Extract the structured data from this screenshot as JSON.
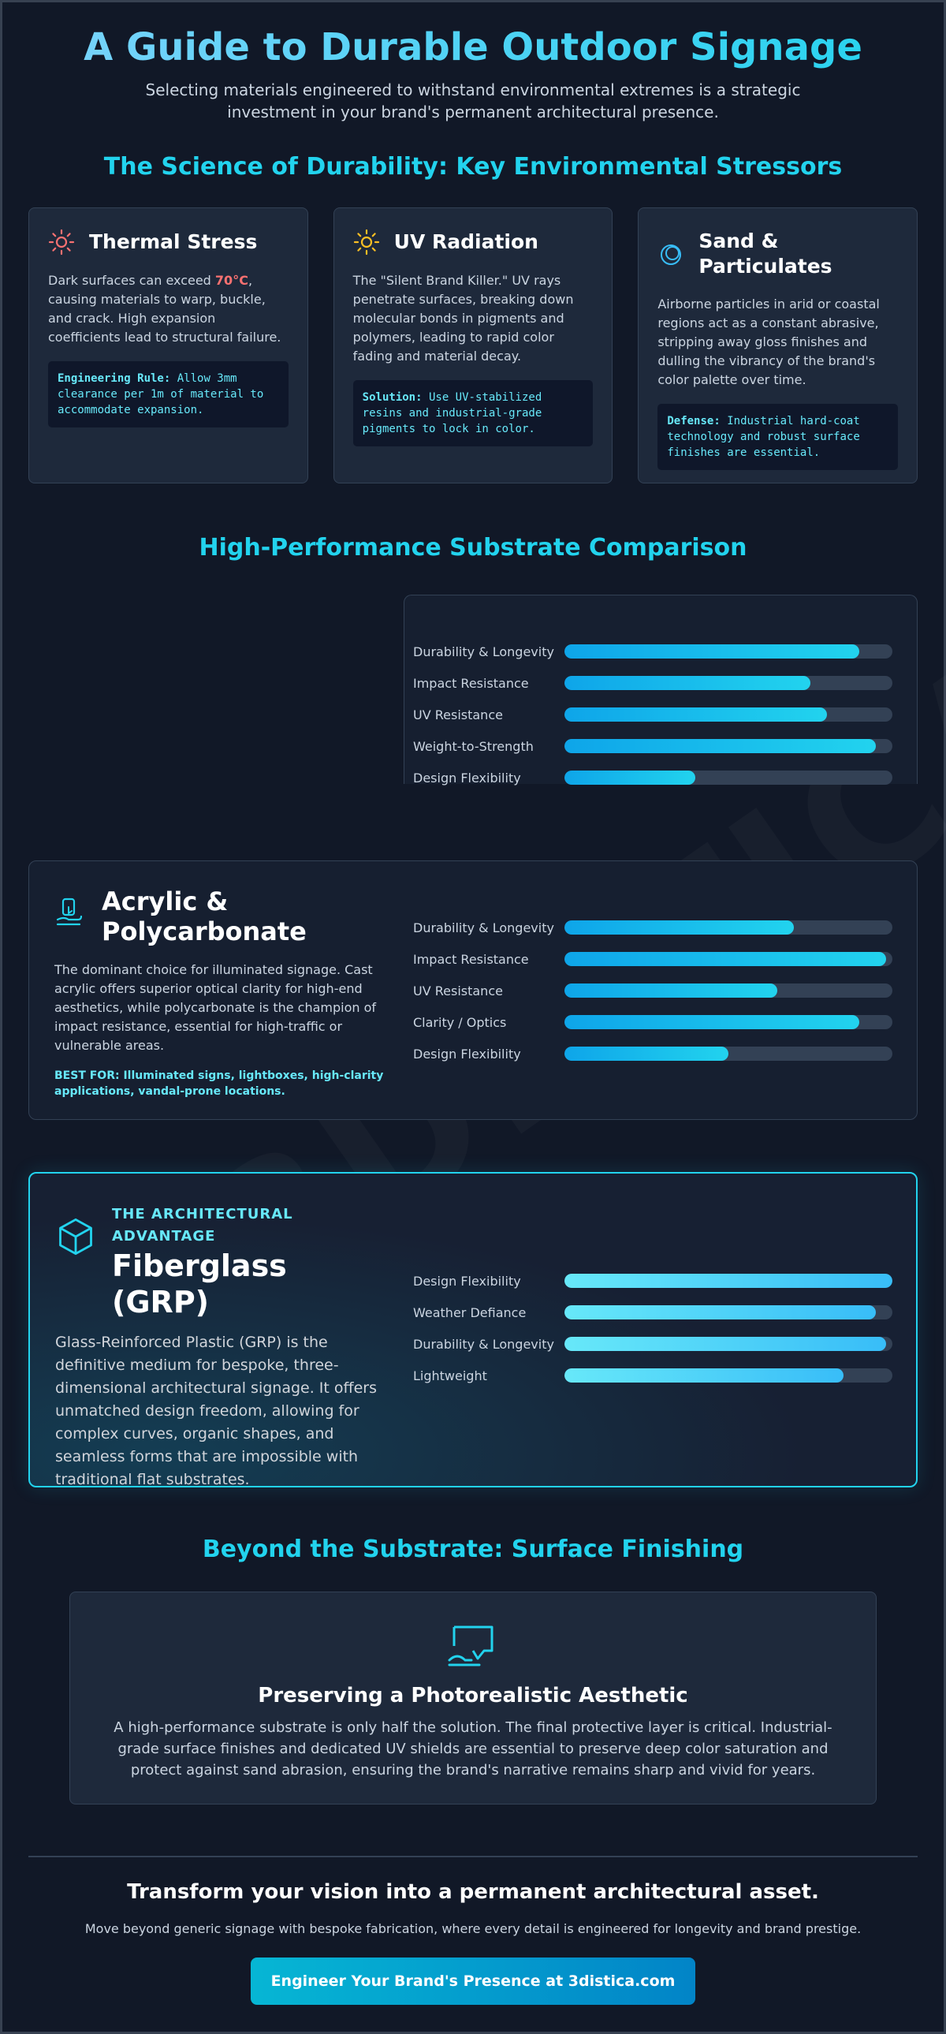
{
  "header": {
    "title": "A Guide to Durable Outdoor Signage",
    "subtitle": "Selecting materials engineered to withstand environmental extremes is a strategic investment in your brand's permanent architectural presence."
  },
  "stressors": {
    "title": "The Science of Durability: Key Environmental Stressors",
    "cards": [
      {
        "icon": "sun-thermal-icon",
        "title": "Thermal Stress",
        "body_pre": "Dark surfaces can exceed ",
        "highlight": "70°C",
        "body_post": ", causing materials to warp, buckle, and crack. High expansion coefficients lead to structural failure.",
        "callout_label": "Engineering Rule:",
        "callout_text": " Allow 3mm clearance per 1m of material to accommodate expansion."
      },
      {
        "icon": "sun-uv-icon",
        "title": "UV Radiation",
        "body": "The \"Silent Brand Killer.\" UV rays penetrate surfaces, breaking down molecular bonds in pigments and polymers, leading to rapid color fading and material decay.",
        "callout_label": "Solution:",
        "callout_text": " Use UV-stabilized resins and industrial-grade pigments to lock in color."
      },
      {
        "icon": "particles-icon",
        "title": "Sand & Particulates",
        "body": "Airborne particles in arid or coastal regions act as a constant abrasive, stripping away gloss finishes and dulling the vibrancy of the brand's color palette over time.",
        "callout_label": "Defense:",
        "callout_text": " Industrial hard-coat technology and robust surface finishes are essential."
      }
    ]
  },
  "comparison": {
    "title": "High-Performance Substrate Comparison",
    "first_stats": [
      {
        "label": "Durability & Longevity",
        "value": 0.9
      },
      {
        "label": "Impact Resistance",
        "value": 0.75
      },
      {
        "label": "UV Resistance",
        "value": 0.8
      },
      {
        "label": "Weight-to-Strength",
        "value": 0.95
      },
      {
        "label": "Design Flexibility",
        "value": 0.4
      }
    ],
    "acrylic": {
      "icon": "hand-tablet-icon",
      "title": "Acrylic & Polycarbonate",
      "description": "The dominant choice for illuminated signage. Cast acrylic offers superior optical clarity for high-end aesthetics, while polycarbonate is the champion of impact resistance, essential for high-traffic or vulnerable areas.",
      "best_for": "BEST FOR: Illuminated signs, lightboxes, high-clarity applications, vandal-prone locations.",
      "stats": [
        {
          "label": "Durability & Longevity",
          "value": 0.7
        },
        {
          "label": "Impact Resistance",
          "value": 0.98
        },
        {
          "label": "UV Resistance",
          "value": 0.65
        },
        {
          "label": "Clarity / Optics",
          "value": 0.9
        },
        {
          "label": "Design Flexibility",
          "value": 0.5
        }
      ]
    },
    "frp": {
      "icon": "cube-icon",
      "eyebrow": "THE ARCHITECTURAL ADVANTAGE",
      "title": "Fiberglass (GRP)",
      "description": "Glass-Reinforced Plastic (GRP) is the definitive medium for bespoke, three-dimensional architectural signage. It offers unmatched design freedom, allowing for complex curves, organic shapes, and seamless forms that are impossible with traditional flat substrates.",
      "stats": [
        {
          "label": "Design Flexibility",
          "value": 1.0
        },
        {
          "label": "Weather Defiance",
          "value": 0.95
        },
        {
          "label": "Durability & Longevity",
          "value": 0.98
        },
        {
          "label": "Lightweight",
          "value": 0.85
        }
      ]
    }
  },
  "finishing": {
    "title": "Beyond the Substrate: Surface Finishing",
    "icon": "picture-frame-icon",
    "card_title": "Preserving a Photorealistic Aesthetic",
    "card_body": "A high-performance substrate is only half the solution. The final protective layer is critical. Industrial-grade surface finishes and dedicated UV shields are essential to preserve deep color saturation and protect against sand abrasion, ensuring the brand's narrative remains sharp and vivid for years."
  },
  "cta": {
    "title": "Transform your vision into a permanent architectural asset.",
    "subtitle": "Move beyond generic signage with bespoke fabrication, where every detail is engineered for longevity and brand prestige.",
    "button": "Engineer Your Brand's Presence at 3distica.com"
  },
  "watermark": "3DISTICA",
  "colors": {
    "background": "#111827",
    "accent": "#22d3ee",
    "card": "#1e293b",
    "hot": "#f87171"
  }
}
